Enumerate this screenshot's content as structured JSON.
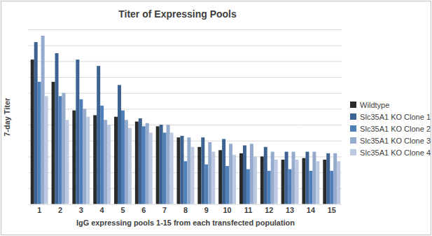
{
  "chart_data": {
    "type": "bar",
    "title": "Titer of Expressing Pools",
    "x_label": "IgG expressing pools 1-15 from each transfected population",
    "y_label": "7-day Titer",
    "categories": [
      "1",
      "2",
      "3",
      "4",
      "5",
      "6",
      "7",
      "8",
      "9",
      "10",
      "11",
      "12",
      "13",
      "14",
      "15"
    ],
    "series": [
      {
        "name": "Wildtype",
        "color": "#2b2b2b",
        "values": [
          9.1,
          7.7,
          5.9,
          5.6,
          5.5,
          5.2,
          4.9,
          4.2,
          3.6,
          3.4,
          3.2,
          3.0,
          2.8,
          2.9,
          2.8
        ]
      },
      {
        "name": "Slc35A1 KO Clone 1",
        "color": "#3c6391",
        "values": [
          10.2,
          9.5,
          9.1,
          8.7,
          7.5,
          5.4,
          5.0,
          4.3,
          4.2,
          4.1,
          3.7,
          3.6,
          3.3,
          3.3,
          3.2
        ]
      },
      {
        "name": "Slc35A1 KO Clone 2",
        "color": "#4f7fb8",
        "values": [
          7.7,
          6.8,
          6.6,
          6.2,
          5.9,
          4.9,
          4.5,
          2.7,
          2.5,
          2.4,
          2.2,
          2.1,
          2.2,
          2.1,
          2.1
        ]
      },
      {
        "name": "Slc35A1 KO Clone 3",
        "color": "#95abcd",
        "values": [
          10.6,
          7.0,
          6.0,
          5.3,
          5.3,
          5.1,
          5.0,
          4.2,
          3.9,
          3.8,
          3.8,
          3.3,
          3.3,
          3.3,
          3.2
        ]
      },
      {
        "name": "Slc35A1 KO Clone 4",
        "color": "#bcc9e0",
        "values": [
          6.8,
          5.3,
          5.5,
          5.0,
          4.8,
          4.5,
          4.5,
          3.6,
          3.3,
          3.1,
          3.0,
          2.8,
          2.8,
          2.7,
          2.7
        ]
      }
    ],
    "ylim": [
      0,
      11
    ],
    "yticks": [
      0,
      1,
      2,
      3,
      4,
      5,
      6,
      7,
      8,
      9,
      10,
      11
    ],
    "grid": true,
    "tick_labels": "x",
    "legend": "right"
  }
}
